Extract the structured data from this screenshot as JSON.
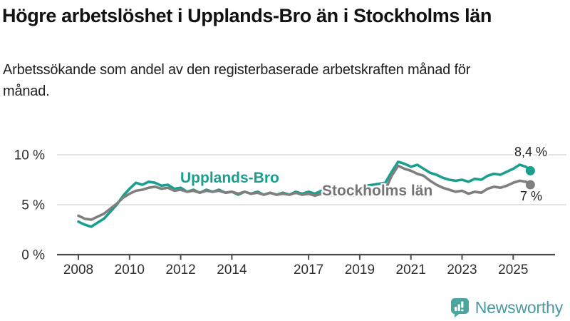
{
  "header": {
    "title": "Högre arbetslöshet i Upplands-Bro än i Stockholms län",
    "subtitle": "Arbetssökande som andel av den registerbaserade arbetskraften månad för månad."
  },
  "footer": {
    "brand": "Newsworthy",
    "brand_color": "#4b98a1",
    "icon": "bar-chart-speech-bubble-icon",
    "icon_color": "#4da5a0"
  },
  "chart_data": {
    "type": "line",
    "title": "Högre arbetslöshet i Upplands-Bro än i Stockholms län",
    "subtitle": "Arbetssökande som andel av den registerbaserade arbetskraften månad för månad.",
    "xlabel": "",
    "ylabel": "",
    "grid": true,
    "grid_color": "#dcdcdc",
    "axis_color": "#4d4d4d",
    "tick_text_color": "#2e2e2e",
    "legend_position": "inline-labels",
    "x_axis": {
      "ticks": [
        2008,
        2010,
        2012,
        2014,
        2017,
        2019,
        2021,
        2023,
        2025
      ],
      "range": [
        2007.2,
        2026.3
      ]
    },
    "y_axis": {
      "ticks": [
        {
          "v": 0,
          "label": "0 %"
        },
        {
          "v": 5,
          "label": "5 %"
        },
        {
          "v": 10,
          "label": "10 %"
        }
      ],
      "range": [
        0,
        10.6
      ],
      "unit": "%"
    },
    "x": [
      2008,
      2008.25,
      2008.5,
      2008.75,
      2009,
      2009.25,
      2009.5,
      2009.75,
      2010,
      2010.25,
      2010.5,
      2010.75,
      2011,
      2011.25,
      2011.5,
      2011.75,
      2012,
      2012.25,
      2012.5,
      2012.75,
      2013,
      2013.25,
      2013.5,
      2013.75,
      2014,
      2014.25,
      2014.5,
      2014.75,
      2015,
      2015.25,
      2015.5,
      2015.75,
      2016,
      2016.25,
      2016.5,
      2016.75,
      2017,
      2017.25,
      2017.5,
      2017.75,
      2018,
      2018.25,
      2018.5,
      2018.75,
      2019,
      2019.25,
      2019.5,
      2019.75,
      2020,
      2020.25,
      2020.5,
      2020.75,
      2021,
      2021.25,
      2021.5,
      2021.75,
      2022,
      2022.25,
      2022.5,
      2022.75,
      2023,
      2023.25,
      2023.5,
      2023.75,
      2024,
      2024.25,
      2024.5,
      2024.75,
      2025,
      2025.25,
      2025.5,
      2025.67
    ],
    "series": [
      {
        "name": "Upplands-Bro",
        "color": "#199e8f",
        "end_label": "8,4 %",
        "end_value": 8.4,
        "values": [
          3.3,
          3.0,
          2.8,
          3.2,
          3.6,
          4.3,
          5.0,
          5.9,
          6.6,
          7.2,
          7.0,
          7.3,
          7.2,
          6.9,
          7.0,
          6.6,
          6.7,
          6.3,
          6.5,
          6.2,
          6.5,
          6.3,
          6.5,
          6.2,
          6.3,
          6.0,
          6.3,
          6.1,
          6.3,
          6.0,
          6.2,
          6.0,
          6.2,
          6.0,
          6.3,
          6.1,
          6.3,
          6.1,
          6.4,
          6.2,
          6.3,
          6.2,
          6.4,
          6.3,
          6.6,
          6.9,
          7.0,
          7.1,
          7.2,
          8.3,
          9.3,
          9.1,
          8.8,
          9.0,
          8.6,
          8.2,
          8.0,
          7.7,
          7.5,
          7.4,
          7.5,
          7.3,
          7.6,
          7.5,
          7.9,
          8.1,
          8.0,
          8.3,
          8.6,
          9.0,
          8.8,
          8.4
        ]
      },
      {
        "name": "Stockholms län",
        "color": "#7f7f7f",
        "label_color": "#757575",
        "end_label": "7 %",
        "end_value": 7.0,
        "values": [
          3.9,
          3.6,
          3.5,
          3.8,
          4.1,
          4.6,
          5.1,
          5.7,
          6.1,
          6.4,
          6.5,
          6.7,
          6.8,
          6.6,
          6.7,
          6.4,
          6.5,
          6.3,
          6.4,
          6.2,
          6.4,
          6.3,
          6.4,
          6.2,
          6.3,
          6.1,
          6.3,
          6.1,
          6.2,
          6.0,
          6.2,
          6.0,
          6.1,
          6.0,
          6.2,
          6.0,
          6.1,
          5.9,
          6.1,
          5.9,
          6.0,
          5.9,
          6.0,
          5.9,
          6.0,
          6.1,
          6.2,
          6.3,
          6.5,
          7.9,
          8.9,
          8.6,
          8.4,
          8.1,
          7.9,
          7.4,
          7.0,
          6.7,
          6.5,
          6.3,
          6.4,
          6.1,
          6.3,
          6.2,
          6.6,
          6.8,
          6.7,
          6.9,
          7.2,
          7.4,
          7.3,
          7.0
        ]
      }
    ]
  }
}
